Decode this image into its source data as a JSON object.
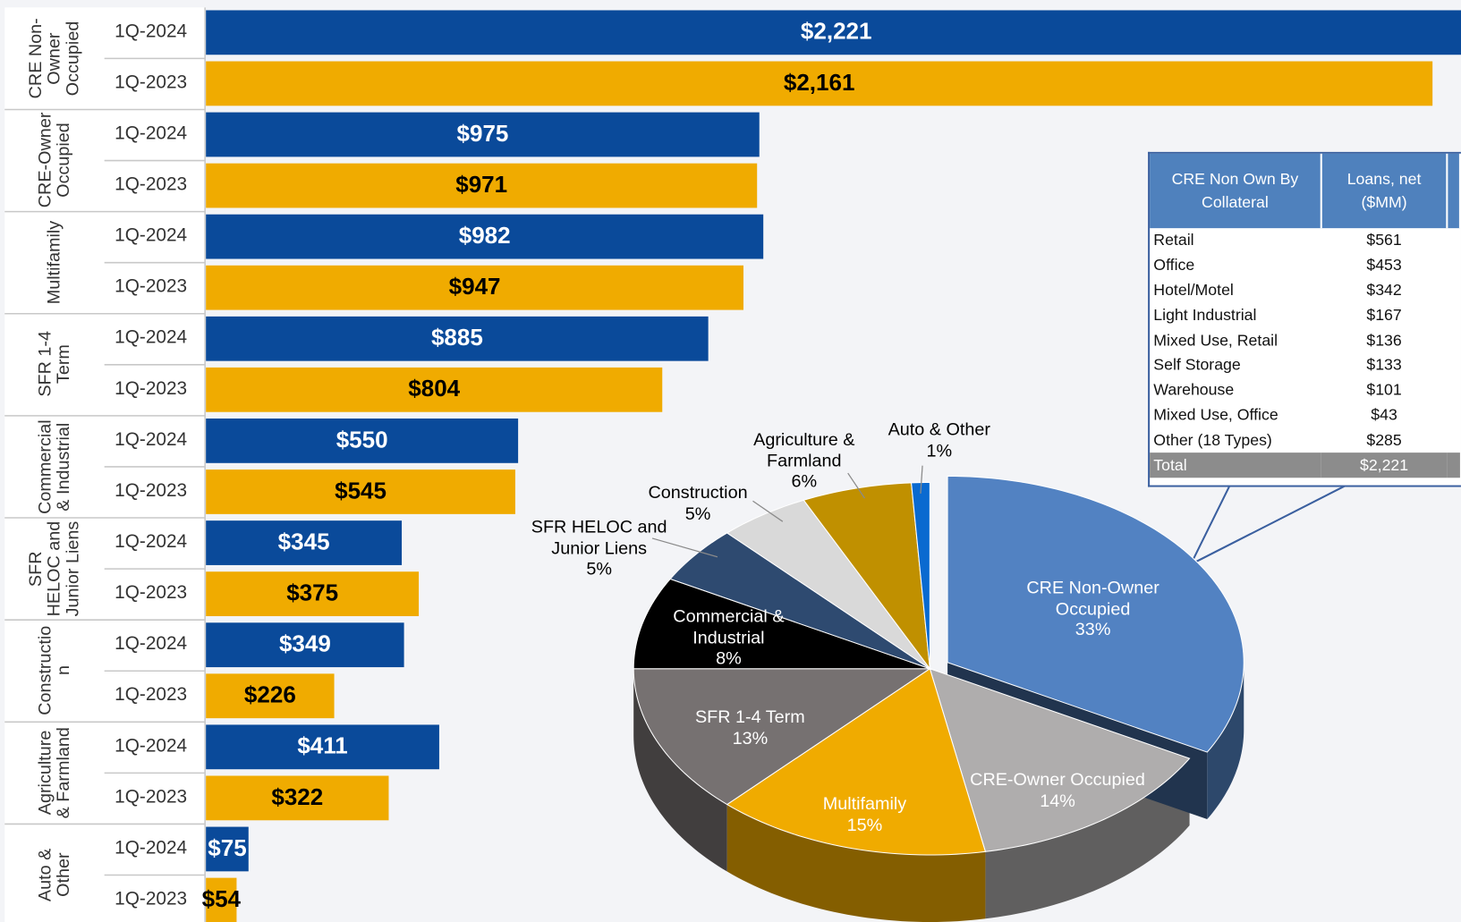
{
  "chart_data": [
    {
      "type": "bar",
      "orientation": "horizontal",
      "categories": [
        "CRE Non-Owner Occupied",
        "CRE-Owner Occupied",
        "Multifamily",
        "SFR 1-4 Term",
        "Commercial & Industrial",
        "SFR HELOC and Junior Liens",
        "Construction",
        "Agriculture & Farmland",
        "Auto & Other"
      ],
      "series": [
        {
          "name": "1Q-2024",
          "color": "#0a4a9a",
          "label_color": "#ffffff",
          "values": [
            2221,
            975,
            982,
            885,
            550,
            345,
            349,
            411,
            75
          ],
          "value_labels": [
            "$2,221",
            "$975",
            "$982",
            "$885",
            "$550",
            "$345",
            "$349",
            "$411",
            "$75"
          ]
        },
        {
          "name": "1Q-2023",
          "color": "#f0ab00",
          "label_color": "#000000",
          "values": [
            2161,
            971,
            947,
            804,
            545,
            375,
            226,
            322,
            54
          ],
          "value_labels": [
            "$2,161",
            "$971",
            "$947",
            "$804",
            "$545",
            "$375",
            "$226",
            "$322",
            "$54"
          ]
        }
      ]
    },
    {
      "type": "pie",
      "labels": [
        "CRE Non-Owner Occupied",
        "CRE-Owner Occupied",
        "Multifamily",
        "SFR 1-4 Term",
        "Commercial & Industrial",
        "SFR HELOC and Junior Liens",
        "Construction",
        "Agriculture & Farmland",
        "Auto & Other"
      ],
      "values": [
        33,
        14,
        15,
        13,
        8,
        5,
        5,
        6,
        1
      ],
      "value_labels": [
        "33%",
        "14%",
        "15%",
        "13%",
        "8%",
        "5%",
        "5%",
        "6%",
        "1%"
      ],
      "colors": [
        "#5282c2",
        "#afadad",
        "#f0ab00",
        "#767171",
        "#000000",
        "#2e4a70",
        "#d9d9d9",
        "#c09000",
        "#0a6ad0"
      ],
      "label_colors": [
        "#ffffff",
        "#ffffff",
        "#ffffff",
        "#ffffff",
        "#ffffff",
        "#000000",
        "#000000",
        "#000000",
        "#000000"
      ]
    }
  ],
  "table": {
    "header": [
      "CRE Non Own By Collateral",
      "Loans, net ($MM)"
    ],
    "rows": [
      [
        "Retail",
        "$561"
      ],
      [
        "Office",
        "$453"
      ],
      [
        "Hotel/Motel",
        "$342"
      ],
      [
        "Light Industrial",
        "$167"
      ],
      [
        "Mixed Use, Retail",
        "$136"
      ],
      [
        "Self Storage",
        "$133"
      ],
      [
        "Warehouse",
        "$101"
      ],
      [
        "Mixed Use, Office",
        "$43"
      ],
      [
        "Other (18 Types)",
        "$285"
      ]
    ],
    "total": [
      "Total",
      "$2,221"
    ]
  }
}
